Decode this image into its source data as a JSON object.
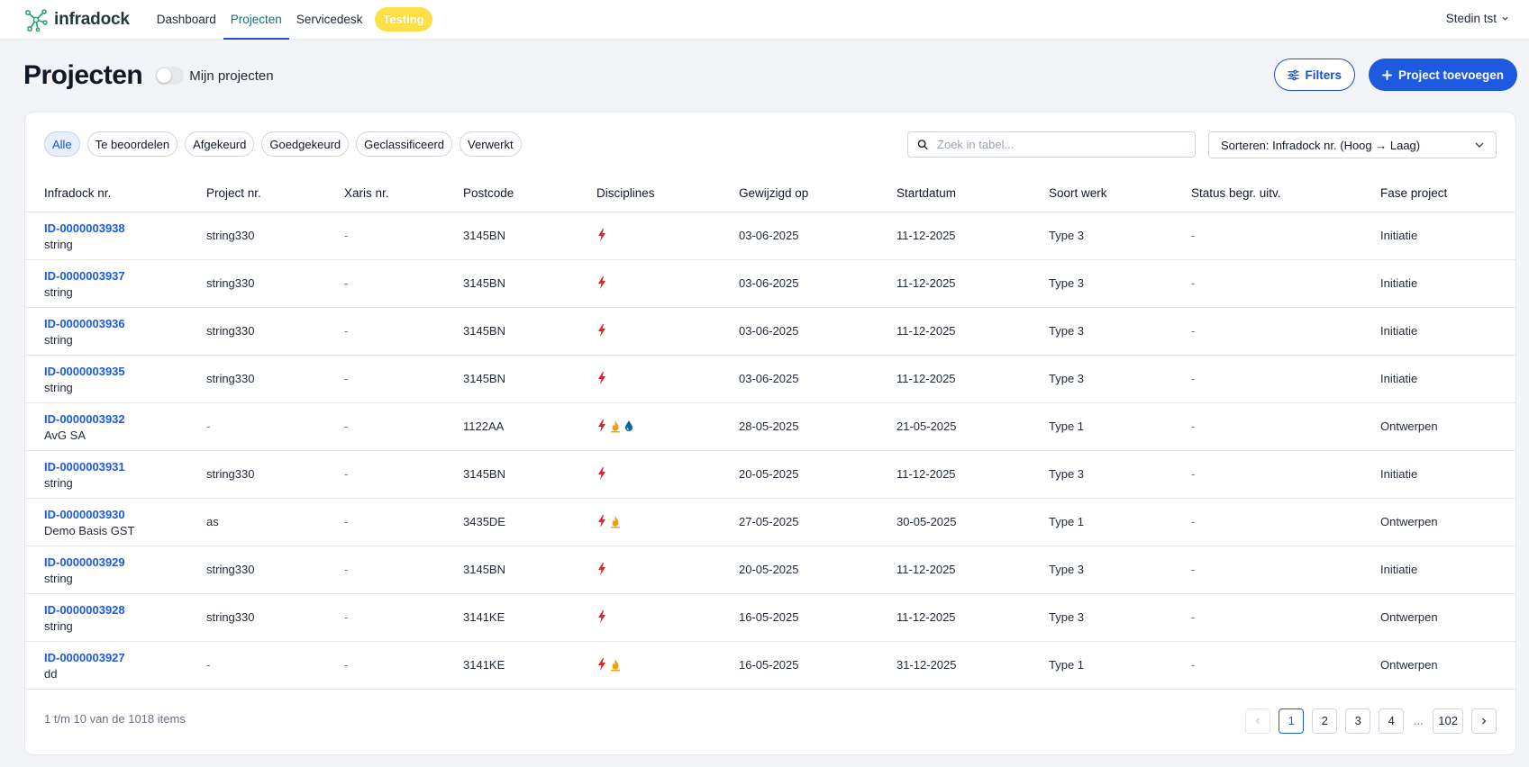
{
  "app": {
    "logo_text": "infradock",
    "nav": [
      {
        "label": "Dashboard"
      },
      {
        "label": "Projecten"
      },
      {
        "label": "Servicedesk"
      }
    ],
    "env_badge": "Testing",
    "user": "Stedin tst"
  },
  "header": {
    "title": "Projecten",
    "toggle_label": "Mijn projecten",
    "filters_label": "Filters",
    "add_label": "Project toevoegen"
  },
  "filters": {
    "chips": [
      {
        "label": "Alle"
      },
      {
        "label": "Te beoordelen"
      },
      {
        "label": "Afgekeurd"
      },
      {
        "label": "Goedgekeurd"
      },
      {
        "label": "Geclassificeerd"
      },
      {
        "label": "Verwerkt"
      }
    ],
    "search_placeholder": "Zoek in tabel...",
    "sort_label": "Sorteren: Infradock nr. (Hoog → Laag)"
  },
  "table": {
    "columns": [
      "Infradock nr.",
      "Project nr.",
      "Xaris nr.",
      "Postcode",
      "Disciplines",
      "Gewijzigd op",
      "Startdatum",
      "Soort werk",
      "Status begr. uitv.",
      "Fase project"
    ],
    "rows": [
      {
        "id": "ID-0000003938",
        "name": "string",
        "project": "string330",
        "xaris": "-",
        "postcode": "3145BN",
        "disciplines": [
          "electricity-icon"
        ],
        "modified": "03-06-2025",
        "start": "11-12-2025",
        "work": "Type 3",
        "status": "-",
        "phase": "Initiatie"
      },
      {
        "id": "ID-0000003937",
        "name": "string",
        "project": "string330",
        "xaris": "-",
        "postcode": "3145BN",
        "disciplines": [
          "electricity-icon"
        ],
        "modified": "03-06-2025",
        "start": "11-12-2025",
        "work": "Type 3",
        "status": "-",
        "phase": "Initiatie"
      },
      {
        "id": "ID-0000003936",
        "name": "string",
        "project": "string330",
        "xaris": "-",
        "postcode": "3145BN",
        "disciplines": [
          "electricity-icon"
        ],
        "modified": "03-06-2025",
        "start": "11-12-2025",
        "work": "Type 3",
        "status": "-",
        "phase": "Initiatie"
      },
      {
        "id": "ID-0000003935",
        "name": "string",
        "project": "string330",
        "xaris": "-",
        "postcode": "3145BN",
        "disciplines": [
          "electricity-icon"
        ],
        "modified": "03-06-2025",
        "start": "11-12-2025",
        "work": "Type 3",
        "status": "-",
        "phase": "Initiatie"
      },
      {
        "id": "ID-0000003932",
        "name": "AvG SA",
        "project": "-",
        "xaris": "-",
        "postcode": "1122AA",
        "disciplines": [
          "electricity-icon",
          "gas-flame-icon",
          "water-drop-icon"
        ],
        "modified": "28-05-2025",
        "start": "21-05-2025",
        "work": "Type 1",
        "status": "-",
        "phase": "Ontwerpen"
      },
      {
        "id": "ID-0000003931",
        "name": "string",
        "project": "string330",
        "xaris": "-",
        "postcode": "3145BN",
        "disciplines": [
          "electricity-icon"
        ],
        "modified": "20-05-2025",
        "start": "11-12-2025",
        "work": "Type 3",
        "status": "-",
        "phase": "Initiatie"
      },
      {
        "id": "ID-0000003930",
        "name": "Demo Basis GST",
        "project": "as",
        "xaris": "-",
        "postcode": "3435DE",
        "disciplines": [
          "electricity-icon",
          "gas-flame-icon"
        ],
        "modified": "27-05-2025",
        "start": "30-05-2025",
        "work": "Type 1",
        "status": "-",
        "phase": "Ontwerpen"
      },
      {
        "id": "ID-0000003929",
        "name": "string",
        "project": "string330",
        "xaris": "-",
        "postcode": "3145BN",
        "disciplines": [
          "electricity-icon"
        ],
        "modified": "20-05-2025",
        "start": "11-12-2025",
        "work": "Type 3",
        "status": "-",
        "phase": "Initiatie"
      },
      {
        "id": "ID-0000003928",
        "name": "string",
        "project": "string330",
        "xaris": "-",
        "postcode": "3141KE",
        "disciplines": [
          "electricity-icon"
        ],
        "modified": "16-05-2025",
        "start": "11-12-2025",
        "work": "Type 3",
        "status": "-",
        "phase": "Ontwerpen"
      },
      {
        "id": "ID-0000003927",
        "name": "dd",
        "project": "-",
        "xaris": "-",
        "postcode": "3141KE",
        "disciplines": [
          "electricity-icon",
          "gas-flame-icon"
        ],
        "modified": "16-05-2025",
        "start": "31-12-2025",
        "work": "Type 1",
        "status": "-",
        "phase": "Ontwerpen"
      }
    ]
  },
  "footer": {
    "count_text": "1 t/m 10 van de 1018 items",
    "pages": [
      "1",
      "2",
      "3",
      "4"
    ],
    "ellipsis": "...",
    "last_page": "102",
    "current_page": "1"
  },
  "colors": {
    "primary": "#1d5ae0",
    "electricity": "#d62828",
    "gas": "#f59e0b",
    "water": "#0369a1",
    "badge": "#fde047"
  }
}
